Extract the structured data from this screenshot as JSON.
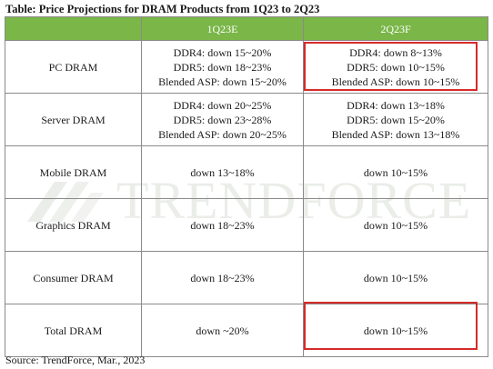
{
  "title": "Table: Price Projections for DRAM Products from 1Q23 to 2Q23",
  "watermark": "TRENDFORCE",
  "columns": [
    "",
    "1Q23E",
    "2Q23F"
  ],
  "rows": [
    {
      "label": "PC DRAM",
      "q1": [
        "DDR4: down 15~20%",
        "DDR5: down 18~23%",
        "Blended ASP: down 15~20%"
      ],
      "q2": [
        "DDR4: down 8~13%",
        "DDR5: down 10~15%",
        "Blended ASP: down 10~15%"
      ]
    },
    {
      "label": "Server DRAM",
      "q1": [
        "DDR4: down 20~25%",
        "DDR5: down 23~28%",
        "Blended ASP: down 20~25%"
      ],
      "q2": [
        "DDR4: down 13~18%",
        "DDR5: down 15~20%",
        "Blended ASP: down 13~18%"
      ]
    },
    {
      "label": "Mobile DRAM",
      "q1": [
        "down 13~18%"
      ],
      "q2": [
        "down 10~15%"
      ]
    },
    {
      "label": "Graphics DRAM",
      "q1": [
        "down 18~23%"
      ],
      "q2": [
        "down 10~15%"
      ]
    },
    {
      "label": "Consumer DRAM",
      "q1": [
        "down 18~23%"
      ],
      "q2": [
        "down 10~15%"
      ]
    },
    {
      "label": "Total DRAM",
      "q1": [
        "down ~20%"
      ],
      "q2": [
        "down 10~15%"
      ]
    }
  ],
  "highlight_color": "#d62a2a",
  "header_color": "#7ab648",
  "source": "Source: TrendForce, Mar., 2023"
}
